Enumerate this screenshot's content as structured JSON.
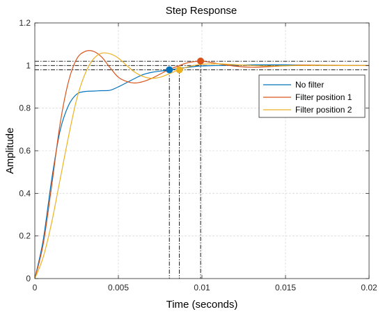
{
  "chart_data": {
    "type": "line",
    "title": "Step Response",
    "xlabel": "Time (seconds)",
    "ylabel": "Amplitude",
    "xlim": [
      0,
      0.02
    ],
    "ylim": [
      0,
      1.2
    ],
    "grid": true,
    "legend_position": "top-right",
    "x_ticks": [
      0,
      0.005,
      0.01,
      0.015,
      0.02
    ],
    "x_tick_labels": [
      "0",
      "0.005",
      "0.01",
      "0.015",
      "0.02"
    ],
    "y_ticks": [
      0,
      0.2,
      0.4,
      0.6,
      0.8,
      1,
      1.2
    ],
    "y_tick_labels": [
      "0",
      "0.2",
      "0.4",
      "0.6",
      "0.8",
      "1",
      "1.2"
    ],
    "series": [
      {
        "name": "No filter",
        "color": "#0072BD",
        "x": [
          0,
          0.0005,
          0.001,
          0.0015,
          0.002,
          0.0025,
          0.003,
          0.0035,
          0.004,
          0.0045,
          0.005,
          0.0055,
          0.006,
          0.0065,
          0.007,
          0.0075,
          0.008,
          0.0085,
          0.009,
          0.0095,
          0.01,
          0.011,
          0.012,
          0.013,
          0.014,
          0.015,
          0.016,
          0.017,
          0.018,
          0.019,
          0.02
        ],
        "y": [
          0,
          0.18,
          0.46,
          0.69,
          0.81,
          0.865,
          0.878,
          0.88,
          0.882,
          0.884,
          0.9,
          0.92,
          0.94,
          0.958,
          0.968,
          0.974,
          0.978,
          0.985,
          0.99,
          0.995,
          0.998,
          1.0,
          1.002,
          1.003,
          1.003,
          1.003,
          1.002,
          1.001,
          1.0,
          1.0,
          1.0
        ]
      },
      {
        "name": "Filter position 1",
        "color": "#D95319",
        "x": [
          0,
          0.0005,
          0.001,
          0.0015,
          0.002,
          0.0025,
          0.003,
          0.0035,
          0.004,
          0.0045,
          0.005,
          0.0055,
          0.006,
          0.0065,
          0.007,
          0.0075,
          0.008,
          0.0085,
          0.009,
          0.0095,
          0.01,
          0.0105,
          0.011,
          0.012,
          0.013,
          0.014,
          0.015,
          0.016,
          0.017,
          0.018,
          0.019,
          0.02
        ],
        "y": [
          0,
          0.16,
          0.43,
          0.72,
          0.92,
          1.03,
          1.066,
          1.067,
          1.04,
          0.99,
          0.945,
          0.925,
          0.918,
          0.925,
          0.94,
          0.96,
          0.98,
          0.995,
          1.01,
          1.018,
          1.02,
          1.015,
          1.008,
          0.997,
          0.992,
          0.995,
          0.999,
          1.002,
          1.002,
          1.001,
          1.0,
          1.0
        ]
      },
      {
        "name": "Filter position 2",
        "color": "#EDB120",
        "x": [
          0,
          0.0005,
          0.001,
          0.0015,
          0.002,
          0.0025,
          0.003,
          0.0035,
          0.004,
          0.0045,
          0.005,
          0.0055,
          0.006,
          0.0065,
          0.007,
          0.0075,
          0.008,
          0.0085,
          0.009,
          0.0095,
          0.01,
          0.011,
          0.012,
          0.013,
          0.014,
          0.015,
          0.016,
          0.017,
          0.018,
          0.019,
          0.02
        ],
        "y": [
          0,
          0.1,
          0.26,
          0.46,
          0.66,
          0.84,
          0.96,
          1.03,
          1.058,
          1.055,
          1.035,
          1.0,
          0.968,
          0.948,
          0.94,
          0.945,
          0.96,
          0.977,
          0.99,
          1.0,
          1.006,
          1.008,
          1.004,
          1.0,
          0.998,
          0.999,
          1.0,
          1.001,
          1.0,
          1.0,
          1.0
        ]
      }
    ],
    "markers": [
      {
        "series": "No filter",
        "x": 0.00805,
        "y": 0.98
      },
      {
        "series": "Filter position 1",
        "x": 0.00992,
        "y": 1.021
      },
      {
        "series": "Filter position 2",
        "x": 0.00865,
        "y": 0.98
      }
    ],
    "reference_lines": {
      "horizontal": [
        1.02,
        1.0,
        0.98
      ],
      "vertical": [
        {
          "x": 0.00805,
          "y_top": 0.98
        },
        {
          "x": 0.00865,
          "y_top": 0.98
        },
        {
          "x": 0.00992,
          "y_top": 1.021
        }
      ]
    }
  }
}
